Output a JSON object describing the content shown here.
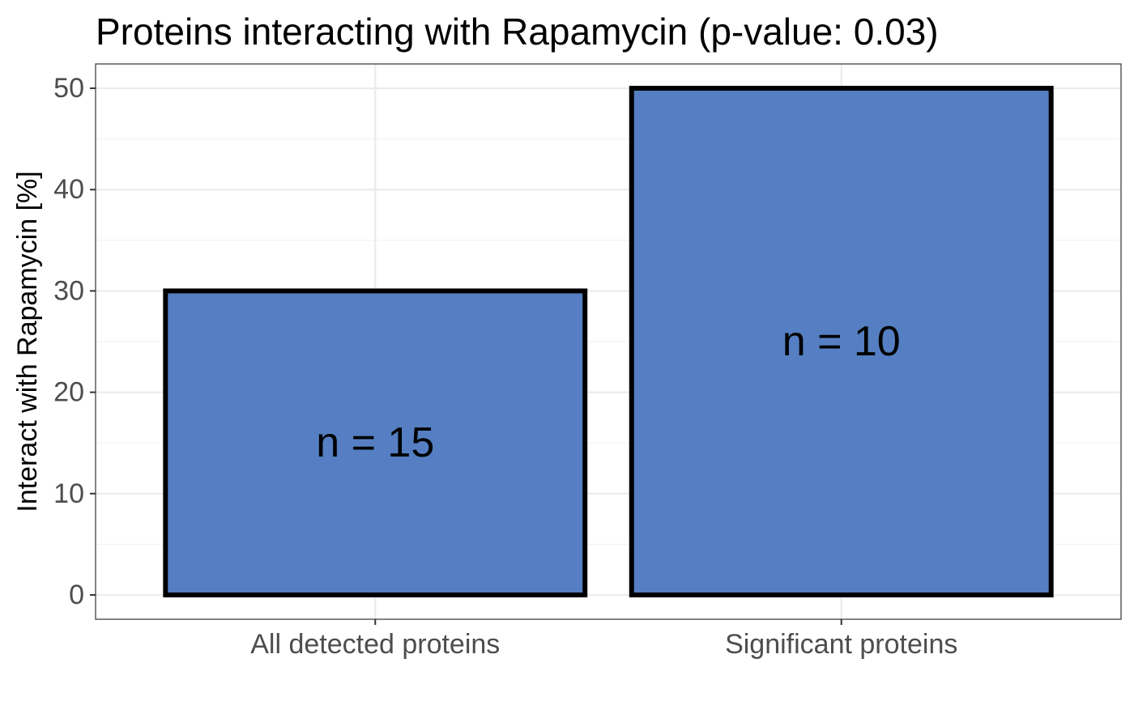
{
  "chart_data": {
    "type": "bar",
    "title": "Proteins interacting with Rapamycin (p-value: 0.03)",
    "xlabel": "",
    "ylabel": "Interact with Rapamycin [%]",
    "categories": [
      "All detected proteins",
      "Significant proteins"
    ],
    "values": [
      30,
      50
    ],
    "bar_labels": [
      "n = 15",
      "n = 10"
    ],
    "bar_label_values": [
      15,
      25
    ],
    "ylim": [
      -2.4,
      52.4
    ],
    "yticks": [
      0,
      10,
      20,
      30,
      40,
      50
    ],
    "ytick_labels": [
      "0",
      "10",
      "20",
      "30",
      "40",
      "50"
    ],
    "grid": true,
    "legend": "none",
    "bar_fill": "#557fc2",
    "bar_outline": "#000000"
  }
}
